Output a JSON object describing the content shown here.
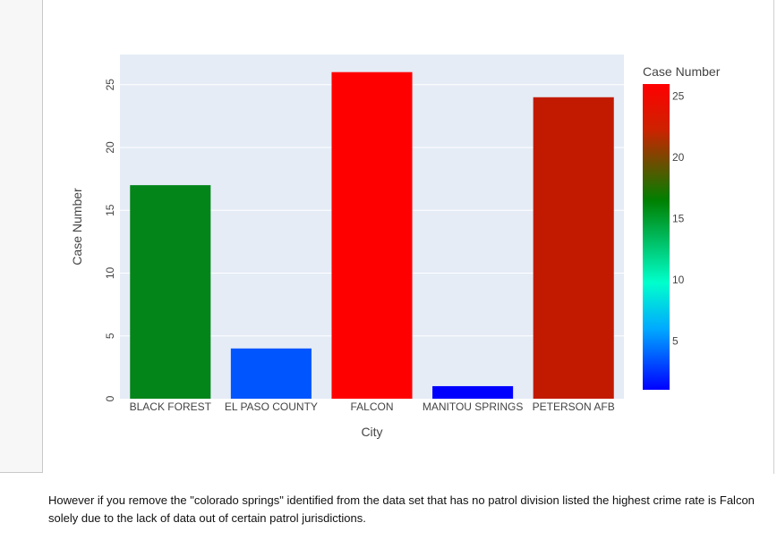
{
  "chart_data": {
    "type": "bar",
    "categories": [
      "BLACK FOREST",
      "EL PASO COUNTY",
      "FALCON",
      "MANITOU SPRINGS",
      "PETERSON AFB"
    ],
    "values": [
      17,
      4,
      26,
      1,
      24
    ],
    "xlabel": "City",
    "ylabel": "Case Number",
    "ylim": [
      0,
      27.4
    ],
    "yticks": [
      0,
      5,
      10,
      15,
      20,
      25
    ],
    "grid": true,
    "plot_background": "#e5ecf6",
    "colorbar": {
      "title": "Case Number",
      "range": [
        1,
        26
      ],
      "ticks": [
        5,
        10,
        15,
        20,
        25
      ],
      "colorscale": [
        [
          0.0,
          "#0000ff"
        ],
        [
          0.2,
          "#00aaff"
        ],
        [
          0.35,
          "#00ffcc"
        ],
        [
          0.62,
          "#008000"
        ],
        [
          0.85,
          "#cc2200"
        ],
        [
          1.0,
          "#ff0000"
        ]
      ]
    },
    "bar_colors": [
      "#038519",
      "#0055ff",
      "#ff0000",
      "#0000ff",
      "#c21a00"
    ]
  },
  "caption": {
    "text": "However if you remove the \"colorado springs\" identified from the data set that has no patrol division listed the highest crime rate is Falcon solely due to the lack of data out of certain patrol jurisdictions."
  }
}
